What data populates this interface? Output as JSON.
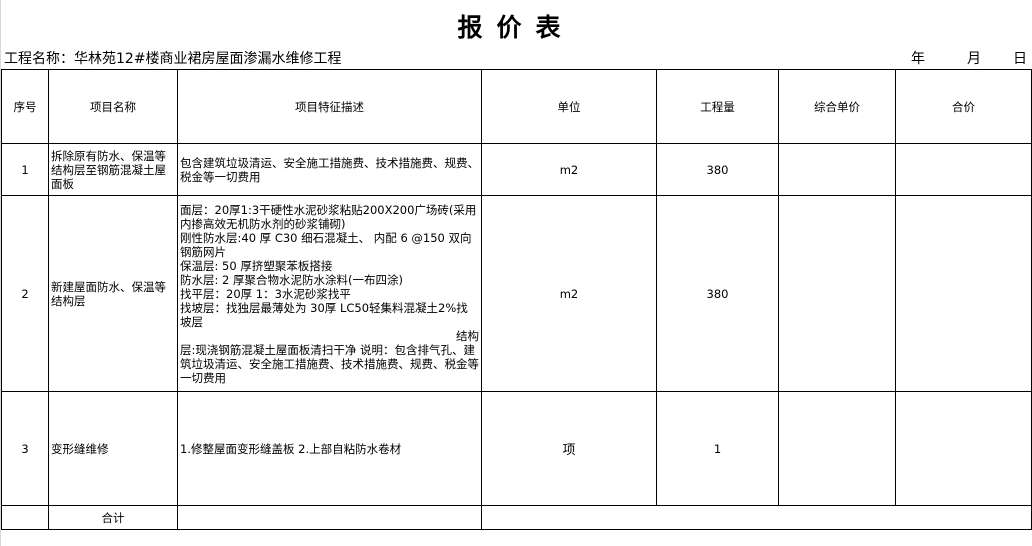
{
  "title": "报价表",
  "project": {
    "label": "工程名称：",
    "name": "华林苑12#楼商业裙房屋面渗漏水维修工程"
  },
  "date": {
    "year": "年",
    "month": "月",
    "day": "日"
  },
  "headers": [
    "序号",
    "项目名称",
    "项目特征描述",
    "单位",
    "工程量",
    "综合单价",
    "合价"
  ],
  "rows": [
    {
      "no": "1",
      "name": "拆除原有防水、保温等结构层至钢筋混凝土屋面板",
      "desc": [
        "包含建筑垃圾清运、安全施工措施费、技术措施费、规费、税金等一切费用"
      ],
      "unit": "m2",
      "qty": "380",
      "price": "",
      "total": ""
    },
    {
      "no": "2",
      "name": "新建屋面防水、保温等结构层",
      "desc": [
        "面层：20厚1:3干硬性水泥砂浆粘贴200X200广场砖(采用内掺高效无机防水剂的砂浆铺砌)",
        "刚性防水层:40 厚 C30 细石混凝土、 内配 6 @150 双向钢筋网片",
        "保温层: 50 厚挤塑聚苯板搭接",
        "防水层: 2 厚聚合物水泥防水涂料(一布四涂)",
        "找平层：20厚 1：3水泥砂浆找平",
        "找坡层：找独层最薄处为 30厚 LC50轻集料混凝土2%找坡层",
        "结构",
        "层:现浇钢筋混凝土屋面板清扫干净 说明：包含排气孔、建筑垃圾清运、安全施工措施费、技术措施费、规费、税金等一切费用"
      ],
      "unit": "m2",
      "qty": "380",
      "price": "",
      "total": ""
    },
    {
      "no": "3",
      "name": "变形缝维修",
      "desc": [
        "1.修整屋面变形缝盖板 2.上部自粘防水卷材"
      ],
      "unit": "项",
      "qty": "1",
      "price": "",
      "total": ""
    }
  ],
  "summary": {
    "label": "合计",
    "value": ""
  }
}
